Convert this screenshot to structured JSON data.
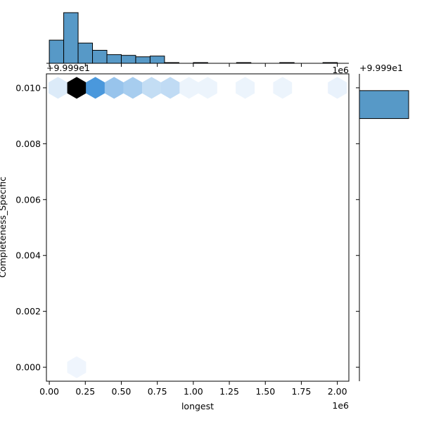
{
  "chart_data": {
    "type": "hexbin-jointplot",
    "xlabel": "longest",
    "ylabel": "Completeness_Specific",
    "x_scale_label": "1e6",
    "y_offset_label": "+9.999e1",
    "marginal_y_offset_label": "+9.999e1",
    "x_ticks": [
      0.0,
      0.25,
      0.5,
      0.75,
      1.0,
      1.25,
      1.5,
      1.75,
      2.0
    ],
    "x_tick_labels": [
      "0.00",
      "0.25",
      "0.50",
      "0.75",
      "1.00",
      "1.25",
      "1.50",
      "1.75",
      "2.00"
    ],
    "y_ticks": [
      0.0,
      0.002,
      0.004,
      0.006,
      0.008,
      0.01
    ],
    "y_tick_labels": [
      "0.000",
      "0.002",
      "0.004",
      "0.006",
      "0.008",
      "0.010"
    ],
    "xlim": [
      -0.02,
      2.08
    ],
    "ylim": [
      -0.0005,
      0.0105
    ],
    "hexbins": [
      {
        "x": 0.06,
        "y": 0.01,
        "density": 0.08
      },
      {
        "x": 0.19,
        "y": 0.01,
        "density": 1.0
      },
      {
        "x": 0.32,
        "y": 0.01,
        "density": 0.55
      },
      {
        "x": 0.45,
        "y": 0.01,
        "density": 0.3
      },
      {
        "x": 0.58,
        "y": 0.01,
        "density": 0.25
      },
      {
        "x": 0.71,
        "y": 0.01,
        "density": 0.16
      },
      {
        "x": 0.84,
        "y": 0.01,
        "density": 0.17
      },
      {
        "x": 0.97,
        "y": 0.01,
        "density": 0.03
      },
      {
        "x": 1.1,
        "y": 0.01,
        "density": 0.03
      },
      {
        "x": 1.36,
        "y": 0.01,
        "density": 0.03
      },
      {
        "x": 1.62,
        "y": 0.01,
        "density": 0.03
      },
      {
        "x": 2.0,
        "y": 0.01,
        "density": 0.04
      },
      {
        "x": 0.19,
        "y": 0.0,
        "density": 0.02
      }
    ],
    "marginal_x_histogram": {
      "bin_edges": [
        0.0,
        0.1,
        0.2,
        0.3,
        0.4,
        0.5,
        0.6,
        0.7,
        0.8,
        0.9,
        1.0,
        1.1,
        1.2,
        1.3,
        1.4,
        1.5,
        1.6,
        1.7,
        1.8,
        1.9,
        2.0
      ],
      "counts": [
        32,
        70,
        28,
        18,
        12,
        11,
        9,
        10,
        1,
        0,
        1,
        0,
        0,
        1,
        0,
        0,
        1,
        0,
        0,
        1
      ]
    },
    "marginal_y_histogram": {
      "bins": [
        {
          "y_low": 0.0089,
          "y_high": 0.0099,
          "count": 1
        }
      ]
    },
    "colors": {
      "bar_fill": "#5799c7",
      "bar_edge": "#000000",
      "hex_dark": "#000000",
      "hex_mid": "#3a8fd9",
      "hex_light": "#f5f9fe"
    }
  }
}
